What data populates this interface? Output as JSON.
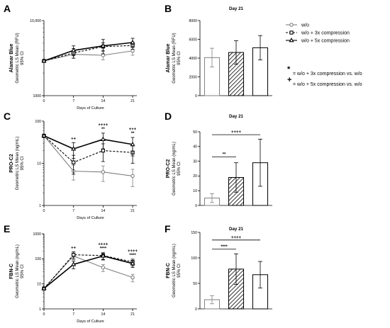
{
  "legend": {
    "items": [
      {
        "label": "w/o",
        "marker": "circle",
        "line": "solid",
        "color": "#808080"
      },
      {
        "label": "w/o + 3x compression",
        "marker": "square",
        "line": "dashed",
        "color": "#000000"
      },
      {
        "label": "w/o + 5x compression",
        "marker": "triangle",
        "line": "solid",
        "color": "#000000"
      }
    ],
    "notes": [
      {
        "symbol": "*",
        "text": "= w/o + 3x compression vs. w/o"
      },
      {
        "symbol": "+",
        "text": "= w/o + 5x compression vs. w/o"
      }
    ]
  },
  "chart_data": [
    {
      "panel": "A",
      "type": "line",
      "ylabel_bold": "Alamar Blue",
      "ylabel": "Geometric LS Mean (RFU)",
      "ylabel_ci": "95% CI",
      "xlabel": "Days of Culture",
      "x": [
        0,
        7,
        14,
        21
      ],
      "xlim": [
        0,
        22
      ],
      "yscale": "log",
      "ylim": [
        1000,
        10000
      ],
      "yticks": [
        1000,
        10000
      ],
      "yticklabels": [
        "1000",
        "10,000"
      ],
      "series": [
        {
          "name": "w/o",
          "values": [
            2900,
            3550,
            3450,
            3950
          ],
          "err": [
            0,
            400,
            450,
            500
          ]
        },
        {
          "name": "w/o + 3x compression",
          "values": [
            2900,
            3700,
            4500,
            4650
          ],
          "err": [
            0,
            550,
            550,
            500
          ]
        },
        {
          "name": "w/o + 5x compression",
          "values": [
            2900,
            4000,
            4600,
            5100
          ],
          "err": [
            0,
            600,
            1000,
            700
          ]
        }
      ],
      "sig": []
    },
    {
      "panel": "B",
      "type": "bar",
      "title": "Day 21",
      "ylabel_bold": "Alamar Blue",
      "ylabel": "Geometric LS Mean (RFU)",
      "ylabel_ci": "95% CI",
      "categories": [
        "w/o",
        "w/o + 3x compression",
        "w/o + 5x compression"
      ],
      "values": [
        4050,
        4600,
        5100
      ],
      "err": [
        1000,
        1250,
        1300
      ],
      "ylim": [
        0,
        8000
      ],
      "yticks": [
        0,
        2000,
        4000,
        6000,
        8000
      ],
      "yticklabels": [
        "0",
        "2000",
        "4000",
        "6000",
        "8000"
      ],
      "brackets": []
    },
    {
      "panel": "C",
      "type": "line",
      "ylabel_bold": "PRO-C2",
      "ylabel": "Geometric LS Mean (ng/mL)",
      "ylabel_ci": "95% CI",
      "xlabel": "Days of Culture",
      "x": [
        0,
        7,
        14,
        21
      ],
      "xlim": [
        0,
        22
      ],
      "yscale": "log",
      "ylim": [
        1,
        100
      ],
      "yticks": [
        1,
        10,
        100
      ],
      "yticklabels": [
        "1",
        "10",
        "100"
      ],
      "series": [
        {
          "name": "w/o",
          "values": [
            45,
            6.5,
            6.2,
            5.0
          ],
          "err": [
            4,
            2.5,
            2.5,
            2.2
          ]
        },
        {
          "name": "w/o + 3x compression",
          "values": [
            45,
            10.5,
            20,
            18
          ],
          "err": [
            4,
            5,
            9,
            8
          ]
        },
        {
          "name": "w/o + 5x compression",
          "values": [
            45,
            22,
            37,
            28
          ],
          "err": [
            4,
            9,
            15,
            13
          ]
        }
      ],
      "sig": [
        {
          "x": 7,
          "lines": [
            "++"
          ]
        },
        {
          "x": 14,
          "lines": [
            "++++",
            "**"
          ]
        },
        {
          "x": 21,
          "lines": [
            "+++",
            "**"
          ]
        }
      ]
    },
    {
      "panel": "D",
      "type": "bar",
      "title": "Day 21",
      "ylabel_bold": "PRO-C2",
      "ylabel": "Geometric LS Mean (ng/mL)",
      "ylabel_ci": "95% CI",
      "categories": [
        "w/o",
        "w/o + 3x compression",
        "w/o + 5x compression"
      ],
      "values": [
        5,
        19,
        29
      ],
      "err": [
        3,
        10,
        16
      ],
      "ylim": [
        0,
        50
      ],
      "yticks": [
        0,
        10,
        20,
        30,
        40,
        50
      ],
      "yticklabels": [
        "0",
        "10",
        "20",
        "30",
        "40",
        "50"
      ],
      "brackets": [
        {
          "from": 0,
          "to": 1,
          "y": 33,
          "label": "**"
        },
        {
          "from": 0,
          "to": 2,
          "y": 48,
          "label": "++++"
        }
      ]
    },
    {
      "panel": "E",
      "type": "line",
      "ylabel_bold": "FBN-C",
      "ylabel": "Geometric LS Mean (ng/mL)",
      "ylabel_ci": "95% CI",
      "xlabel": "Days of Culture",
      "x": [
        0,
        7,
        14,
        21
      ],
      "xlim": [
        0,
        22
      ],
      "yscale": "log",
      "ylim": [
        1,
        1000
      ],
      "yticks": [
        1,
        10,
        100,
        1000
      ],
      "yticklabels": [
        "1",
        "10",
        "100",
        "1000"
      ],
      "series": [
        {
          "name": "w/o",
          "values": [
            6.5,
            130,
            45,
            18
          ],
          "err": [
            0.6,
            40,
            14,
            6
          ]
        },
        {
          "name": "w/o + 3x compression",
          "values": [
            6.5,
            145,
            135,
            75
          ],
          "err": [
            0.6,
            45,
            40,
            22
          ]
        },
        {
          "name": "w/o + 5x compression",
          "values": [
            6.5,
            60,
            130,
            65
          ],
          "err": [
            0.6,
            20,
            40,
            20
          ]
        }
      ],
      "sig": [
        {
          "x": 7,
          "lines": [
            "++"
          ]
        },
        {
          "x": 14,
          "lines": [
            "++++",
            "****"
          ]
        },
        {
          "x": 21,
          "lines": [
            "++++",
            "****"
          ]
        }
      ]
    },
    {
      "panel": "F",
      "type": "bar",
      "title": "Day 21",
      "ylabel_bold": "FBN-C",
      "ylabel": "Geometric LS Mean (ng/mL)",
      "ylabel_ci": "95% CI",
      "categories": [
        "w/o",
        "w/o + 3x compression",
        "w/o + 5x compression"
      ],
      "values": [
        18,
        78,
        67
      ],
      "err": [
        8,
        30,
        26
      ],
      "ylim": [
        0,
        150
      ],
      "yticks": [
        0,
        50,
        100,
        150
      ],
      "yticklabels": [
        "0",
        "50",
        "100",
        "150"
      ],
      "brackets": [
        {
          "from": 0,
          "to": 1,
          "y": 117,
          "label": "****"
        },
        {
          "from": 0,
          "to": 2,
          "y": 135,
          "label": "++++"
        }
      ]
    }
  ]
}
